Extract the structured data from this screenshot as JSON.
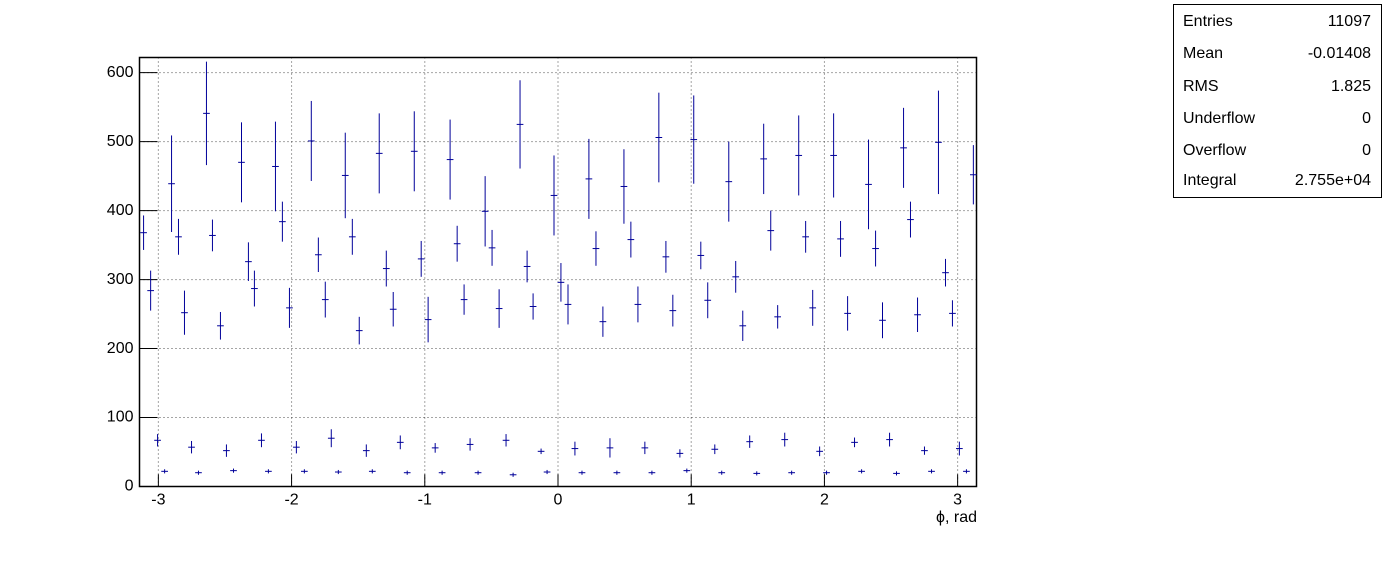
{
  "chart_data": {
    "type": "errorbar",
    "x_label": "ϕ, rad",
    "color": "#000099",
    "xlim": [
      -3.1416,
      3.1416
    ],
    "ylim": [
      0,
      622
    ],
    "xticks": [
      -3,
      -2,
      -1,
      0,
      1,
      2,
      3
    ],
    "yticks": [
      0,
      100,
      200,
      300,
      400,
      500,
      600
    ],
    "grid": true,
    "bin_width": 0.0503,
    "x": [
      -3.111,
      -3.058,
      -3.006,
      -2.953,
      -2.901,
      -2.849,
      -2.804,
      -2.751,
      -2.699,
      -2.639,
      -2.594,
      -2.534,
      -2.489,
      -2.436,
      -2.376,
      -2.324,
      -2.279,
      -2.226,
      -2.174,
      -2.121,
      -2.069,
      -2.016,
      -1.964,
      -1.904,
      -1.852,
      -1.799,
      -1.747,
      -1.702,
      -1.649,
      -1.597,
      -1.544,
      -1.492,
      -1.439,
      -1.394,
      -1.342,
      -1.289,
      -1.237,
      -1.184,
      -1.132,
      -1.079,
      -1.027,
      -0.975,
      -0.922,
      -0.87,
      -0.81,
      -0.757,
      -0.705,
      -0.66,
      -0.6,
      -0.547,
      -0.495,
      -0.442,
      -0.39,
      -0.337,
      -0.285,
      -0.232,
      -0.187,
      -0.127,
      -0.082,
      -0.03,
      0.022,
      0.075,
      0.127,
      0.18,
      0.232,
      0.285,
      0.337,
      0.39,
      0.442,
      0.495,
      0.547,
      0.6,
      0.652,
      0.705,
      0.757,
      0.81,
      0.862,
      0.915,
      0.967,
      1.019,
      1.072,
      1.124,
      1.177,
      1.229,
      1.282,
      1.334,
      1.387,
      1.439,
      1.492,
      1.544,
      1.597,
      1.649,
      1.702,
      1.754,
      1.807,
      1.859,
      1.912,
      1.964,
      2.016,
      2.069,
      2.121,
      2.174,
      2.226,
      2.279,
      2.331,
      2.384,
      2.436,
      2.489,
      2.541,
      2.594,
      2.646,
      2.699,
      2.751,
      2.804,
      2.856,
      2.909,
      2.961,
      3.013,
      3.066,
      3.118
    ],
    "values": [
      368,
      284,
      67,
      22,
      439,
      362,
      252,
      57,
      20,
      541,
      364,
      233,
      52,
      23,
      470,
      326,
      287,
      67,
      22,
      464,
      384,
      259,
      57,
      22,
      501,
      336,
      271,
      70,
      21,
      451,
      362,
      226,
      52,
      22,
      483,
      316,
      257,
      64,
      20,
      486,
      330,
      242,
      56,
      20,
      474,
      352,
      271,
      61,
      20,
      399,
      346,
      258,
      67,
      17,
      525,
      319,
      261,
      51,
      21,
      422,
      296,
      264,
      55,
      20,
      446,
      345,
      239,
      56,
      20,
      435,
      358,
      264,
      56,
      20,
      506,
      333,
      255,
      48,
      23,
      503,
      335,
      270,
      54,
      20,
      442,
      304,
      233,
      65,
      19,
      475,
      371,
      246,
      68,
      20,
      480,
      362,
      259,
      51,
      20,
      480,
      359,
      251,
      64,
      22,
      438,
      345,
      241,
      68,
      19,
      491,
      387,
      249,
      52,
      22,
      499,
      310,
      251,
      55,
      22,
      452
    ],
    "errors": [
      25,
      29,
      9,
      3,
      70,
      26,
      32,
      9,
      3,
      75,
      23,
      20,
      9,
      3,
      58,
      28,
      26,
      10,
      3,
      65,
      29,
      29,
      9,
      3,
      58,
      25,
      26,
      13,
      3,
      62,
      26,
      20,
      9,
      3,
      58,
      26,
      25,
      10,
      3,
      58,
      26,
      33,
      7,
      3,
      58,
      26,
      22,
      9,
      3,
      51,
      26,
      28,
      9,
      3,
      64,
      23,
      19,
      4,
      3,
      58,
      28,
      29,
      10,
      3,
      58,
      25,
      22,
      14,
      3,
      54,
      26,
      26,
      9,
      3,
      65,
      23,
      23,
      6,
      3,
      64,
      20,
      26,
      7,
      3,
      58,
      23,
      22,
      9,
      3,
      51,
      29,
      17,
      10,
      3,
      58,
      23,
      26,
      7,
      3,
      61,
      26,
      25,
      7,
      3,
      65,
      26,
      26,
      10,
      3,
      58,
      26,
      25,
      6,
      3,
      75,
      20,
      19,
      10,
      3,
      43
    ],
    "stats": [
      {
        "label": "Entries",
        "value": 11097
      },
      {
        "label": "Mean",
        "value": -0.01408
      },
      {
        "label": "RMS",
        "value": 1.825
      },
      {
        "label": "Underflow",
        "value": 0
      },
      {
        "label": "Overflow",
        "value": 0
      },
      {
        "label": "Integral",
        "value": {
          "value": 27550,
          "label": "2.755e+04"
        }
      }
    ]
  }
}
